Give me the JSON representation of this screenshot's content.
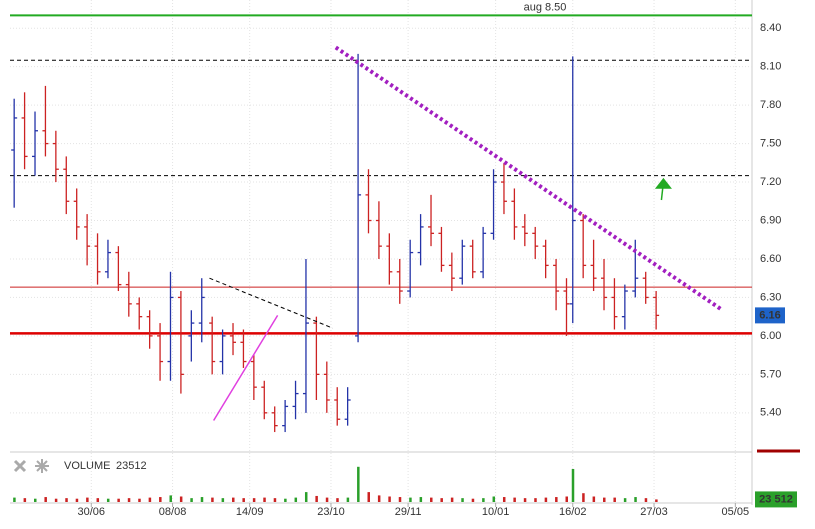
{
  "chart_data": {
    "type": "ohlc",
    "xlim": [
      -39,
      317
    ],
    "ylim": [
      5.11,
      8.62
    ],
    "xticks": [
      {
        "value": 0,
        "label": "30/06"
      },
      {
        "value": 39,
        "label": "08/08"
      },
      {
        "value": 76,
        "label": "14/09"
      },
      {
        "value": 115,
        "label": "23/10"
      },
      {
        "value": 152,
        "label": "29/11"
      },
      {
        "value": 194,
        "label": "10/01"
      },
      {
        "value": 231,
        "label": "16/02"
      },
      {
        "value": 270,
        "label": "27/03"
      },
      {
        "value": 309,
        "label": "05/05"
      }
    ],
    "yticks": [
      {
        "value": 5.4,
        "label": "5.40"
      },
      {
        "value": 5.7,
        "label": "5.70"
      },
      {
        "value": 6.0,
        "label": "6.00"
      },
      {
        "value": 6.3,
        "label": "6.30"
      },
      {
        "value": 6.6,
        "label": "6.60"
      },
      {
        "value": 6.9,
        "label": "6.90"
      },
      {
        "value": 7.2,
        "label": "7.20"
      },
      {
        "value": 7.5,
        "label": "7.50"
      },
      {
        "value": 7.8,
        "label": "7.80"
      },
      {
        "value": 8.1,
        "label": "8.10"
      },
      {
        "value": 8.4,
        "label": "8.40"
      }
    ],
    "grid": true,
    "up_color": "#2433a8",
    "down_color": "#cc2222",
    "x": [
      -37,
      -32,
      -27,
      -22,
      -17,
      -12,
      -7,
      -2,
      3,
      8,
      13,
      18,
      23,
      28,
      33,
      38,
      43,
      48,
      53,
      58,
      63,
      68,
      73,
      78,
      83,
      88,
      93,
      98,
      103,
      108,
      113,
      118,
      123,
      128,
      133,
      138,
      143,
      148,
      153,
      158,
      163,
      168,
      173,
      178,
      183,
      188,
      193,
      198,
      203,
      208,
      213,
      218,
      223,
      228,
      231,
      236,
      241,
      246,
      251,
      256,
      261,
      266,
      271
    ],
    "open": [
      7.45,
      7.7,
      7.4,
      7.6,
      7.5,
      7.3,
      7.05,
      6.85,
      6.7,
      6.5,
      6.65,
      6.4,
      6.25,
      6.15,
      6.0,
      5.8,
      6.3,
      6.0,
      6.1,
      6.1,
      5.8,
      6.0,
      5.95,
      5.8,
      5.6,
      5.4,
      5.3,
      5.45,
      5.55,
      6.1,
      5.7,
      5.5,
      5.35,
      6.0,
      7.1,
      6.9,
      6.7,
      6.5,
      6.35,
      6.65,
      6.85,
      6.8,
      6.55,
      6.45,
      6.7,
      6.5,
      6.8,
      7.2,
      7.05,
      6.85,
      6.8,
      6.7,
      6.55,
      6.35,
      6.25,
      6.9,
      6.55,
      6.45,
      6.3,
      6.15,
      6.35,
      6.45,
      6.3
    ],
    "high": [
      7.85,
      7.9,
      7.75,
      7.95,
      7.6,
      7.4,
      7.15,
      6.95,
      6.8,
      6.75,
      6.7,
      6.5,
      6.3,
      6.2,
      6.1,
      6.5,
      6.35,
      6.2,
      6.45,
      6.15,
      6.05,
      6.1,
      6.05,
      5.85,
      5.65,
      5.45,
      5.5,
      5.65,
      6.6,
      6.15,
      5.8,
      5.6,
      5.6,
      8.2,
      7.3,
      7.05,
      6.8,
      6.6,
      6.75,
      6.95,
      7.1,
      6.85,
      6.65,
      6.75,
      6.75,
      6.85,
      7.3,
      7.35,
      7.15,
      6.95,
      6.85,
      6.75,
      6.6,
      6.45,
      8.18,
      6.95,
      6.75,
      6.6,
      6.45,
      6.4,
      6.75,
      6.5,
      6.35
    ],
    "low": [
      7.0,
      7.3,
      7.25,
      7.4,
      7.2,
      6.95,
      6.75,
      6.55,
      6.4,
      6.45,
      6.35,
      6.15,
      6.05,
      5.9,
      5.65,
      5.65,
      5.55,
      5.8,
      5.95,
      5.7,
      5.7,
      5.85,
      5.75,
      5.5,
      5.35,
      5.25,
      5.25,
      5.35,
      5.4,
      5.5,
      5.4,
      5.3,
      5.3,
      5.95,
      6.8,
      6.6,
      6.4,
      6.25,
      6.3,
      6.55,
      6.7,
      6.5,
      6.35,
      6.4,
      6.45,
      6.45,
      6.75,
      6.95,
      6.75,
      6.7,
      6.6,
      6.45,
      6.2,
      6.0,
      6.1,
      6.45,
      6.35,
      6.2,
      6.05,
      6.05,
      6.3,
      6.25,
      6.05
    ],
    "close": [
      7.7,
      7.4,
      7.6,
      7.5,
      7.3,
      7.05,
      6.85,
      6.7,
      6.5,
      6.65,
      6.4,
      6.25,
      6.15,
      6.0,
      5.8,
      6.3,
      5.7,
      6.1,
      6.3,
      5.8,
      6.0,
      5.95,
      5.8,
      5.6,
      5.4,
      5.3,
      5.45,
      5.55,
      6.1,
      5.7,
      5.5,
      5.35,
      5.5,
      7.1,
      6.9,
      6.7,
      6.5,
      6.35,
      6.65,
      6.85,
      6.8,
      6.55,
      6.45,
      6.7,
      6.5,
      6.8,
      7.2,
      7.05,
      6.85,
      6.8,
      6.7,
      6.55,
      6.35,
      6.25,
      6.9,
      6.55,
      6.45,
      6.3,
      6.15,
      6.35,
      6.45,
      6.3,
      6.16
    ],
    "volume": [
      40000,
      35000,
      30000,
      45000,
      30000,
      35000,
      30000,
      40000,
      35000,
      30000,
      30000,
      35000,
      30000,
      40000,
      45000,
      60000,
      50000,
      35000,
      45000,
      40000,
      35000,
      40000,
      35000,
      35000,
      40000,
      35000,
      30000,
      40000,
      90000,
      55000,
      40000,
      35000,
      40000,
      320000,
      90000,
      60000,
      50000,
      45000,
      40000,
      45000,
      40000,
      35000,
      40000,
      35000,
      30000,
      35000,
      50000,
      45000,
      40000,
      35000,
      35000,
      40000,
      45000,
      50000,
      300000,
      80000,
      50000,
      40000,
      40000,
      35000,
      45000,
      35000,
      23512
    ],
    "volume_ylim": [
      0,
      400000
    ],
    "volume_title": "VOLUME",
    "volume_value_label": "23 512",
    "last_price": 6.16,
    "last_price_color": "#1e63c9",
    "volume_box_color": "#2aa02a",
    "volume_up_color": "#2aa02a",
    "volume_down_color": "#cc2222",
    "hlines": [
      {
        "value": 8.5,
        "color": "#22aa22",
        "width": 2,
        "dashed": false,
        "label": "aug 8.50"
      },
      {
        "value": 8.15,
        "color": "#000000",
        "width": 1,
        "dashed": true
      },
      {
        "value": 7.25,
        "color": "#000000",
        "width": 1,
        "dashed": true
      },
      {
        "value": 6.38,
        "color": "#cc2222",
        "width": 1,
        "dashed": false
      },
      {
        "value": 6.02,
        "color": "#dd0000",
        "width": 2.5,
        "dashed": false
      }
    ],
    "trendlines": [
      {
        "x": [
          117.3,
          302.9
        ],
        "y": [
          8.25,
          6.2
        ],
        "color": "#a21fc0",
        "width": 4,
        "dotted": true
      },
      {
        "x": [
          56.7,
          115.9
        ],
        "y": [
          6.45,
          6.06
        ],
        "color": "#000000",
        "width": 1,
        "dotted": true
      },
      {
        "x": [
          58.7,
          89.4
        ],
        "y": [
          5.34,
          6.16
        ],
        "color": "#e040e0",
        "width": 1.5,
        "dotted": false
      }
    ],
    "arrow": {
      "x": 274.5,
      "y": [
        7.06,
        7.2
      ],
      "color": "#22aa22"
    }
  }
}
